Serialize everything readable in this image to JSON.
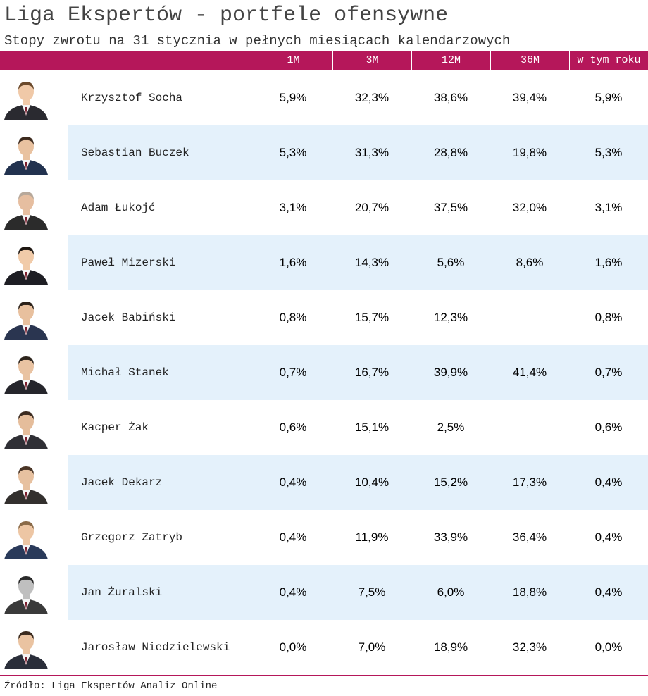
{
  "title": "Liga Ekspertów - portfele ofensywne",
  "subtitle": "Stopy zwrotu na 31 stycznia w pełnych miesiącach kalendarzowych",
  "columns": [
    "1M",
    "3M",
    "12M",
    "36M",
    "w tym roku"
  ],
  "rows": [
    {
      "name": "Krzysztof Socha",
      "r1m": "5,9%",
      "r3m": "32,3%",
      "r12m": "38,6%",
      "r36m": "39,4%",
      "ytd": "5,9%"
    },
    {
      "name": "Sebastian Buczek",
      "r1m": "5,3%",
      "r3m": "31,3%",
      "r12m": "28,8%",
      "r36m": "19,8%",
      "ytd": "5,3%"
    },
    {
      "name": "Adam Łukojć",
      "r1m": "3,1%",
      "r3m": "20,7%",
      "r12m": "37,5%",
      "r36m": "32,0%",
      "ytd": "3,1%"
    },
    {
      "name": "Paweł Mizerski",
      "r1m": "1,6%",
      "r3m": "14,3%",
      "r12m": "5,6%",
      "r36m": "8,6%",
      "ytd": "1,6%"
    },
    {
      "name": "Jacek Babiński",
      "r1m": "0,8%",
      "r3m": "15,7%",
      "r12m": "12,3%",
      "r36m": "",
      "ytd": "0,8%"
    },
    {
      "name": "Michał Stanek",
      "r1m": "0,7%",
      "r3m": "16,7%",
      "r12m": "39,9%",
      "r36m": "41,4%",
      "ytd": "0,7%"
    },
    {
      "name": "Kacper Żak",
      "r1m": "0,6%",
      "r3m": "15,1%",
      "r12m": "2,5%",
      "r36m": "",
      "ytd": "0,6%"
    },
    {
      "name": "Jacek Dekarz",
      "r1m": "0,4%",
      "r3m": "10,4%",
      "r12m": "15,2%",
      "r36m": "17,3%",
      "ytd": "0,4%"
    },
    {
      "name": "Grzegorz Zatryb",
      "r1m": "0,4%",
      "r3m": "11,9%",
      "r12m": "33,9%",
      "r36m": "36,4%",
      "ytd": "0,4%"
    },
    {
      "name": "Jan Żuralski",
      "r1m": "0,4%",
      "r3m": "7,5%",
      "r12m": "6,0%",
      "r36m": "18,8%",
      "ytd": "0,4%"
    },
    {
      "name": "Jarosław Niedzielewski",
      "r1m": "0,0%",
      "r3m": "7,0%",
      "r12m": "18,9%",
      "r36m": "32,3%",
      "ytd": "0,0%"
    }
  ],
  "footer": "Źródło: Liga Ekspertów Analiz Online",
  "colors": {
    "accent": "#b5175a",
    "row_shade": "#e4f1fb"
  }
}
